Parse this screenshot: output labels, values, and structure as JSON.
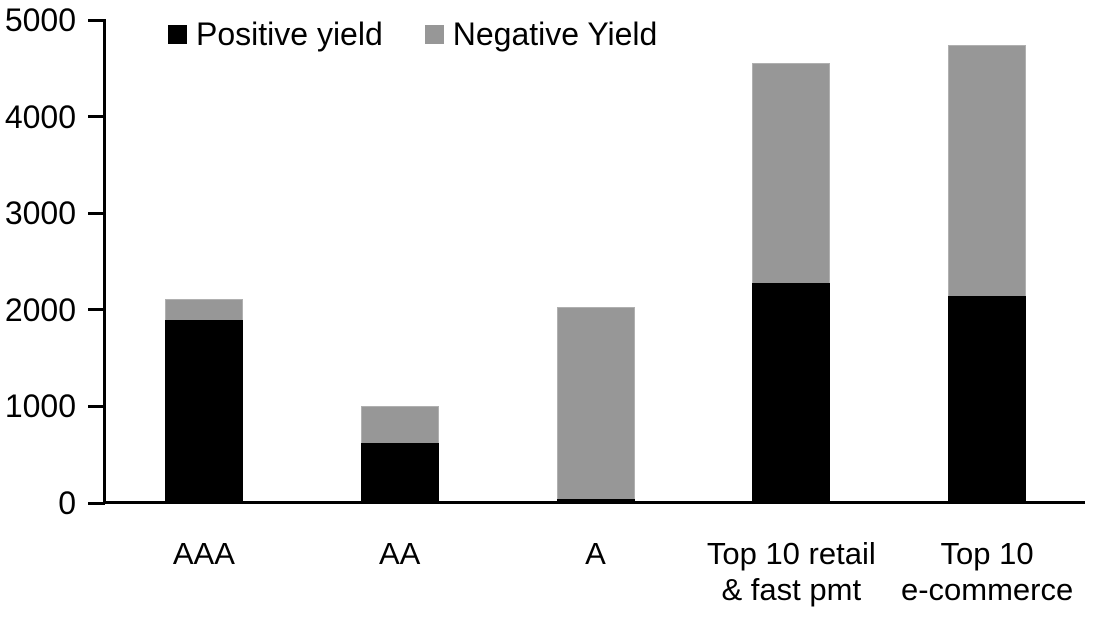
{
  "chart_data": {
    "type": "bar",
    "stacked": true,
    "title": "",
    "categories": [
      "AAA",
      "AA",
      "A",
      "Top 10 retail & fast pmt",
      "Top 10 e-commerce"
    ],
    "category_label_lines": [
      [
        "AAA"
      ],
      [
        "AA"
      ],
      [
        "A"
      ],
      [
        "Top 10 retail",
        "& fast pmt"
      ],
      [
        "Top 10",
        "e-commerce"
      ]
    ],
    "series": [
      {
        "name": "Positive yield",
        "color": "#000000",
        "values": [
          1890,
          620,
          40,
          2280,
          2140
        ]
      },
      {
        "name": "Negative Yield",
        "color": "#979797",
        "values": [
          220,
          385,
          1990,
          2270,
          2600
        ]
      }
    ],
    "xlabel": "",
    "ylabel": "",
    "ylim": [
      0,
      5000
    ],
    "ytick_interval": 1000,
    "yticks": [
      "0",
      "1000",
      "2000",
      "3000",
      "4000",
      "5000"
    ],
    "legend_position": "top-left",
    "grid": false,
    "axis_color": "#000000",
    "background_color": "#ffffff"
  }
}
